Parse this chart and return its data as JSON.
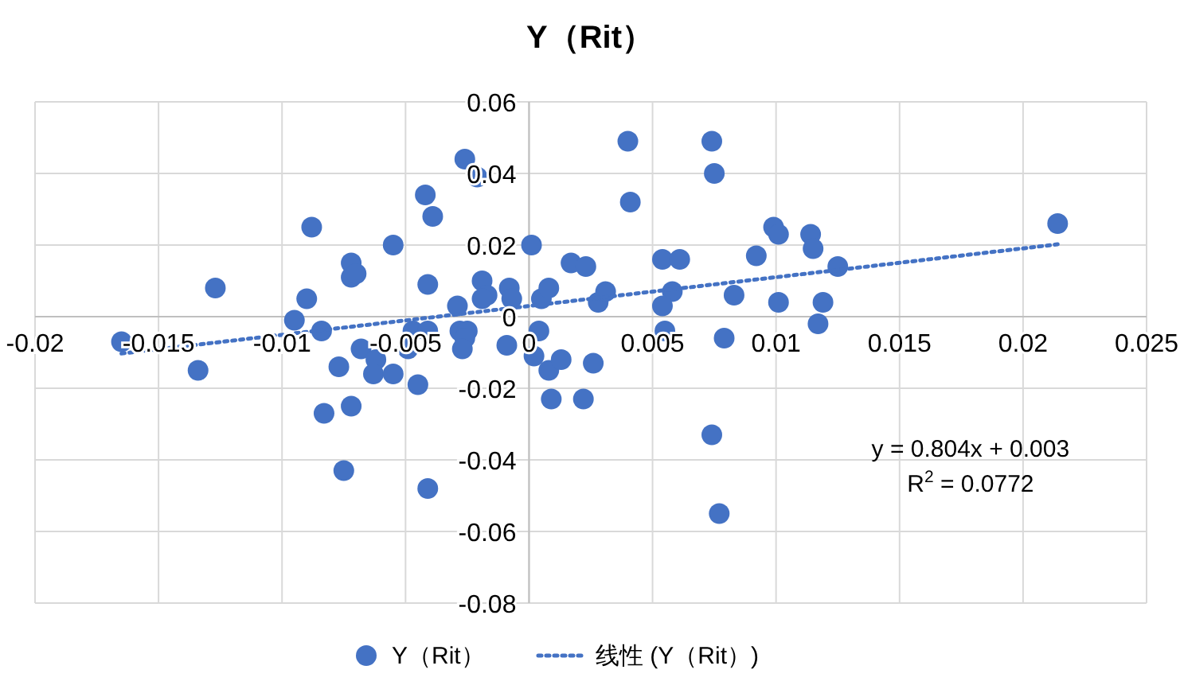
{
  "chart_data": {
    "type": "scatter",
    "title": "Y（Rit）",
    "xlim": [
      -0.02,
      0.025
    ],
    "ylim": [
      -0.08,
      0.06
    ],
    "xticks": [
      -0.02,
      -0.015,
      -0.01,
      -0.005,
      0,
      0.005,
      0.01,
      0.015,
      0.02,
      0.025
    ],
    "yticks": [
      -0.08,
      -0.06,
      -0.04,
      -0.02,
      0,
      0.02,
      0.04,
      0.06
    ],
    "grid": true,
    "legend": "bottom",
    "annotations": [
      "y = 0.804x + 0.003",
      "R$^{2}$ = 0.0772"
    ],
    "series": [
      {
        "name": "Y（Rit）",
        "color": "#4472c4",
        "marker": "circle",
        "x": [
          -0.0165,
          -0.0134,
          -0.0127,
          -0.0095,
          -0.009,
          -0.0088,
          -0.0084,
          -0.0083,
          -0.0077,
          -0.0075,
          -0.0072,
          -0.0072,
          -0.0072,
          -0.007,
          -0.0068,
          -0.0062,
          -0.0063,
          -0.0055,
          -0.0055,
          -0.0049,
          -0.0047,
          -0.0042,
          -0.0039,
          -0.0041,
          -0.0041,
          -0.0045,
          -0.0041,
          -0.0026,
          -0.0021,
          -0.0019,
          -0.0017,
          -0.0019,
          -0.0029,
          -0.0028,
          -0.0025,
          -0.0026,
          -0.0027,
          -0.0008,
          -0.0007,
          -0.0009,
          0.0001,
          0.0005,
          0.0008,
          0.0004,
          0.0002,
          0.0008,
          0.0013,
          0.0009,
          0.0017,
          0.0023,
          0.0022,
          0.0026,
          0.0028,
          0.0031,
          0.004,
          0.0041,
          0.0054,
          0.0061,
          0.0058,
          0.0054,
          0.0055,
          0.0074,
          0.0075,
          0.0083,
          0.0079,
          0.0074,
          0.0077,
          0.0092,
          0.0099,
          0.0101,
          0.0114,
          0.0115,
          0.0125,
          0.0101,
          0.0119,
          0.0117,
          0.0214
        ],
        "values": [
          -0.007,
          -0.015,
          0.008,
          -0.001,
          0.005,
          0.025,
          -0.004,
          -0.027,
          -0.014,
          -0.043,
          -0.025,
          0.015,
          0.011,
          0.012,
          -0.009,
          -0.012,
          -0.016,
          -0.016,
          0.02,
          -0.009,
          -0.004,
          0.034,
          0.028,
          0.009,
          -0.004,
          -0.019,
          -0.048,
          0.044,
          0.039,
          0.01,
          0.006,
          0.005,
          0.003,
          -0.004,
          -0.004,
          -0.006,
          -0.009,
          0.008,
          0.005,
          -0.008,
          0.02,
          0.005,
          0.008,
          -0.004,
          -0.011,
          -0.015,
          -0.012,
          -0.023,
          0.015,
          0.014,
          -0.023,
          -0.013,
          0.004,
          0.007,
          0.049,
          0.032,
          0.016,
          0.016,
          0.007,
          0.003,
          -0.004,
          0.049,
          0.04,
          0.006,
          -0.006,
          -0.033,
          -0.055,
          0.017,
          0.025,
          0.023,
          0.023,
          0.019,
          0.014,
          0.004,
          0.004,
          -0.002,
          0.026
        ]
      },
      {
        "name": "线性 (Y（Rit）)",
        "color": "#4472c4",
        "type": "line",
        "marker": "none",
        "line_style": "dotted",
        "x": [
          -0.0165,
          0.0214
        ],
        "values": [
          -0.0103,
          0.0202
        ]
      }
    ]
  }
}
